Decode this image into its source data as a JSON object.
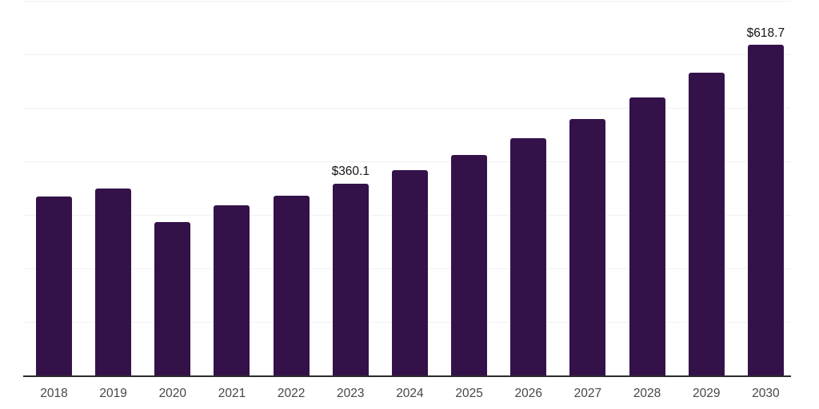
{
  "chart_data": {
    "type": "bar",
    "title": "",
    "xlabel": "",
    "ylabel": "",
    "categories": [
      "2018",
      "2019",
      "2020",
      "2021",
      "2022",
      "2023",
      "2024",
      "2025",
      "2026",
      "2027",
      "2028",
      "2029",
      "2030"
    ],
    "values": [
      335.8,
      350.2,
      288.1,
      319.4,
      337.9,
      360.1,
      385.5,
      413.8,
      445.1,
      481.3,
      521.6,
      567.7,
      618.7
    ],
    "data_labels": [
      {
        "category": "2023",
        "text": "$360.1"
      },
      {
        "category": "2030",
        "text": "$618.7"
      }
    ],
    "ylim": [
      0,
      700
    ],
    "gridline_step": 100,
    "grid": true,
    "legend_position": "none",
    "colors": {
      "bar": "#341249",
      "gridline": "#f1f1f4",
      "axis_line": "#2b2b2b",
      "tick_label": "#474747",
      "data_label": "#141414",
      "background": "#ffffff"
    }
  }
}
